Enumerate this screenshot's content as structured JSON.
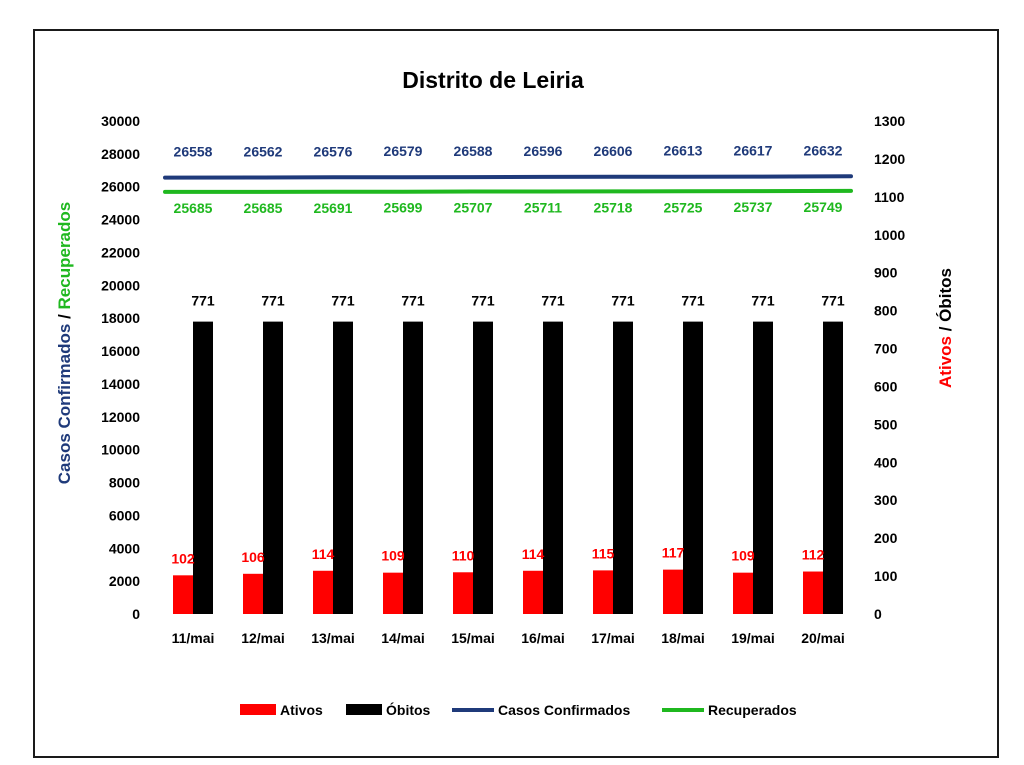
{
  "chart_data": {
    "type": "bar",
    "title": "Distrito de Leiria",
    "categories": [
      "11/mai",
      "12/mai",
      "13/mai",
      "14/mai",
      "15/mai",
      "16/mai",
      "17/mai",
      "18/mai",
      "19/mai",
      "20/mai"
    ],
    "left_axis": {
      "label_part1": "Casos Confirmados",
      "label_sep": " / ",
      "label_part2": "Recuperados",
      "ylim": [
        0,
        30000
      ],
      "ticks": [
        "0",
        "2000",
        "4000",
        "6000",
        "8000",
        "10000",
        "12000",
        "14000",
        "16000",
        "18000",
        "20000",
        "22000",
        "24000",
        "26000",
        "28000",
        "30000"
      ]
    },
    "right_axis": {
      "label_part1": "Ativos",
      "label_sep": " / ",
      "label_part2": "Óbitos",
      "ylim": [
        0,
        1300
      ],
      "ticks": [
        "0",
        "100",
        "200",
        "300",
        "400",
        "500",
        "600",
        "700",
        "800",
        "900",
        "1000",
        "1100",
        "1200",
        "1300"
      ]
    },
    "series": [
      {
        "name": "Ativos",
        "kind": "bar",
        "axis": "right",
        "color": "#ff0000",
        "label_color": "#ff0000",
        "values": [
          102,
          106,
          114,
          109,
          110,
          114,
          115,
          117,
          109,
          112
        ]
      },
      {
        "name": "Óbitos",
        "kind": "bar",
        "axis": "right",
        "color": "#000000",
        "label_color": "#000000",
        "values": [
          771,
          771,
          771,
          771,
          771,
          771,
          771,
          771,
          771,
          771
        ]
      },
      {
        "name": "Casos Confirmados",
        "kind": "line",
        "axis": "left",
        "color": "#1f3a7a",
        "label_color": "#1f3a7a",
        "values": [
          26558,
          26562,
          26576,
          26579,
          26588,
          26596,
          26606,
          26613,
          26617,
          26632
        ]
      },
      {
        "name": "Recuperados",
        "kind": "line",
        "axis": "left",
        "color": "#1fb81f",
        "label_color": "#1fb81f",
        "values": [
          25685,
          25685,
          25691,
          25699,
          25707,
          25711,
          25718,
          25725,
          25737,
          25749
        ]
      }
    ],
    "legend_position": "bottom",
    "grid": false
  }
}
